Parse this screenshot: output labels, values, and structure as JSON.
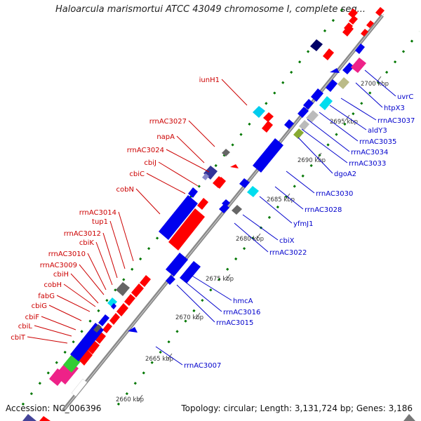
{
  "title": "Haloarcula marismortui ATCC 43049 chromosome I, complete seq...",
  "accession_label": "Accession: NC_006396",
  "topology_label": "Topology: circular; Length: 3,131,724 bp; Genes: 3,186",
  "colors": {
    "label_left": "#cc0000",
    "label_right": "#0000cc",
    "reverse_strand": "#ff0000",
    "forward_strand": "#0000ee",
    "axis": "#888888",
    "dots": "#007700"
  },
  "ticks": [
    "2660 kbp",
    "2665 kbp",
    "2670 kbp",
    "2675 kbp",
    "2680 kbp",
    "2685 kbp",
    "2690 kbp",
    "2695 kbp",
    "2700 kbp"
  ],
  "left_labels": [
    "iunH1",
    "rrnAC3027",
    "napA",
    "rrnAC3024",
    "cbiJ",
    "cbiC",
    "cobN",
    "rrnAC3014",
    "tup1",
    "rrnAC3012",
    "cbiK",
    "rrnAC3010",
    "rrnAC3009",
    "cbiH",
    "cobH",
    "fabG",
    "cbiG",
    "cbiF",
    "cbiL",
    "cbiT"
  ],
  "right_labels": [
    "uvrC",
    "htpX3",
    "rrnAC3037",
    "aldY3",
    "rrnAC3035",
    "rrnAC3034",
    "rrnAC3033",
    "dgoA2",
    "rrnAC3030",
    "rrnAC3028",
    "yfmJ1",
    "cbiX",
    "rrnAC3022",
    "hmcA",
    "rrnAC3016",
    "rrnAC3015",
    "rrnAC3007"
  ]
}
